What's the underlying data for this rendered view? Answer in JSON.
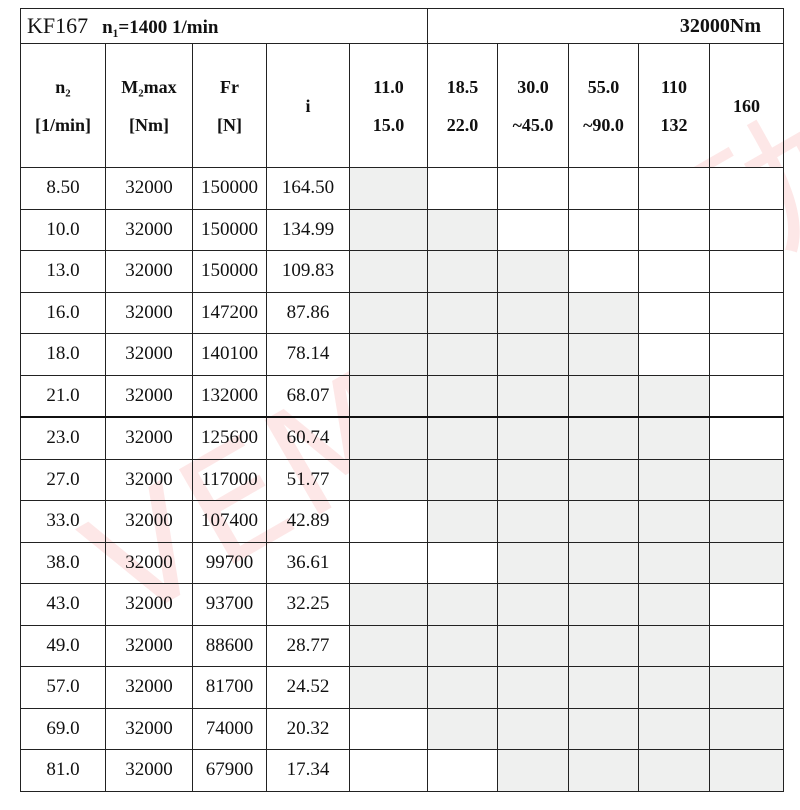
{
  "title": {
    "model": "KF167",
    "input_speed": "n₁=1400 1/min",
    "torque": "32000Nm"
  },
  "headers": {
    "n2": [
      "n₂",
      "[1/min]"
    ],
    "m2": [
      "M₂max",
      "[Nm]"
    ],
    "fr": [
      "Fr",
      "[N]"
    ],
    "i": "i",
    "powers": [
      [
        "11.0",
        "15.0"
      ],
      [
        "18.5",
        "22.0"
      ],
      [
        "30.0",
        "~45.0"
      ],
      [
        "55.0",
        "~90.0"
      ],
      [
        "110",
        "132"
      ],
      [
        "160",
        ""
      ]
    ]
  },
  "rows": [
    {
      "n2": "8.50",
      "m2": "32000",
      "fr": "150000",
      "i": "164.50",
      "shade": [
        1,
        0,
        0,
        0,
        0,
        0
      ]
    },
    {
      "n2": "10.0",
      "m2": "32000",
      "fr": "150000",
      "i": "134.99",
      "shade": [
        1,
        1,
        0,
        0,
        0,
        0
      ]
    },
    {
      "n2": "13.0",
      "m2": "32000",
      "fr": "150000",
      "i": "109.83",
      "shade": [
        1,
        1,
        1,
        0,
        0,
        0
      ]
    },
    {
      "n2": "16.0",
      "m2": "32000",
      "fr": "147200",
      "i": "87.86",
      "shade": [
        1,
        1,
        1,
        1,
        0,
        0
      ]
    },
    {
      "n2": "18.0",
      "m2": "32000",
      "fr": "140100",
      "i": "78.14",
      "shade": [
        1,
        1,
        1,
        1,
        0,
        0
      ]
    },
    {
      "n2": "21.0",
      "m2": "32000",
      "fr": "132000",
      "i": "68.07",
      "shade": [
        1,
        1,
        1,
        1,
        1,
        0
      ]
    },
    {
      "n2": "23.0",
      "m2": "32000",
      "fr": "125600",
      "i": "60.74",
      "shade": [
        1,
        1,
        1,
        1,
        1,
        0
      ]
    },
    {
      "n2": "27.0",
      "m2": "32000",
      "fr": "117000",
      "i": "51.77",
      "shade": [
        1,
        1,
        1,
        1,
        1,
        1
      ]
    },
    {
      "n2": "33.0",
      "m2": "32000",
      "fr": "107400",
      "i": "42.89",
      "shade": [
        0,
        1,
        1,
        1,
        1,
        1
      ]
    },
    {
      "n2": "38.0",
      "m2": "32000",
      "fr": "99700",
      "i": "36.61",
      "shade": [
        0,
        0,
        1,
        1,
        1,
        1
      ]
    },
    {
      "n2": "43.0",
      "m2": "32000",
      "fr": "93700",
      "i": "32.25",
      "shade": [
        1,
        1,
        1,
        1,
        1,
        0
      ]
    },
    {
      "n2": "49.0",
      "m2": "32000",
      "fr": "88600",
      "i": "28.77",
      "shade": [
        1,
        1,
        1,
        1,
        1,
        0
      ]
    },
    {
      "n2": "57.0",
      "m2": "32000",
      "fr": "81700",
      "i": "24.52",
      "shade": [
        1,
        1,
        1,
        1,
        1,
        1
      ]
    },
    {
      "n2": "69.0",
      "m2": "32000",
      "fr": "74000",
      "i": "20.32",
      "shade": [
        0,
        1,
        1,
        1,
        1,
        1
      ]
    },
    {
      "n2": "81.0",
      "m2": "32000",
      "fr": "67900",
      "i": "17.34",
      "shade": [
        0,
        0,
        1,
        1,
        1,
        1
      ]
    }
  ],
  "colors": {
    "shade": "#eff0ef",
    "watermark": "#f03c3c"
  },
  "watermark": "VEMTE传动"
}
